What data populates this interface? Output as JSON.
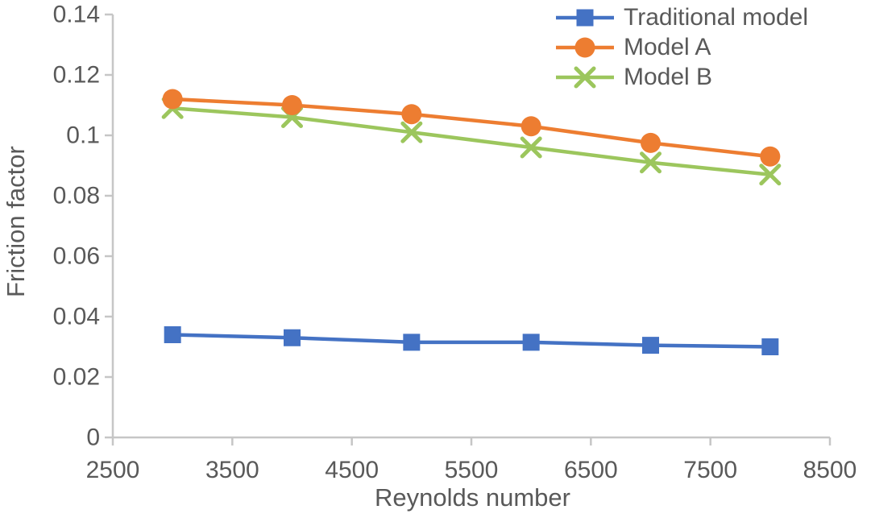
{
  "chart_data": {
    "type": "line",
    "title": "",
    "xlabel": "Reynolds number",
    "ylabel": "Friction factor",
    "xlim": [
      2500,
      8500
    ],
    "ylim": [
      0,
      0.14
    ],
    "grid": false,
    "legend_position": "top-right",
    "x_tick_labels": [
      "2500",
      "3500",
      "4500",
      "5500",
      "6500",
      "7500",
      "8500"
    ],
    "x_tick_values": [
      2500,
      3500,
      4500,
      5500,
      6500,
      7500,
      8500
    ],
    "y_tick_labels": [
      "0",
      "0.02",
      "0.04",
      "0.06",
      "0.08",
      "0.1",
      "0.12",
      "0.14"
    ],
    "y_tick_values": [
      0,
      0.02,
      0.04,
      0.06,
      0.08,
      0.1,
      0.12,
      0.14
    ],
    "x": [
      3000,
      4000,
      5000,
      6000,
      7000,
      8000
    ],
    "series": [
      {
        "name": "Traditional model",
        "color": "#4472C4",
        "marker": "square",
        "values": [
          0.034,
          0.033,
          0.0315,
          0.0315,
          0.0305,
          0.03
        ]
      },
      {
        "name": "Model A",
        "color": "#ED7D31",
        "marker": "circle",
        "values": [
          0.112,
          0.11,
          0.107,
          0.103,
          0.0975,
          0.093
        ]
      },
      {
        "name": "Model B",
        "color": "#9CC65D",
        "marker": "x",
        "values": [
          0.109,
          0.106,
          0.101,
          0.096,
          0.091,
          0.087
        ]
      }
    ],
    "colors": {
      "axis_line": "#C6C6C6",
      "tick_text": "#595959",
      "title_text": "#595959"
    }
  }
}
